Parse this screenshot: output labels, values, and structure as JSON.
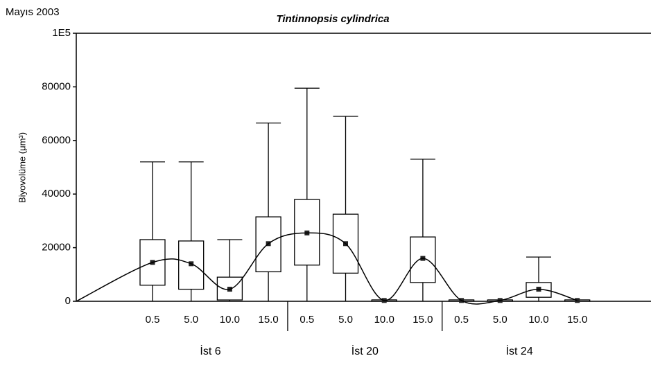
{
  "chart_data": {
    "type": "box",
    "title": "Tintinnopsis cylindrica",
    "subtitle": "Mayıs 2003",
    "y_label": "Biyovolüme (μm³)",
    "categories": [
      "0.5",
      "5.0",
      "10.0",
      "15.0",
      "0.5",
      "5.0",
      "10.0",
      "15.0",
      "0.5",
      "5.0",
      "10.0",
      "15.0"
    ],
    "groups": [
      "İst 6",
      "İst 20",
      "İst 24"
    ],
    "boxes": [
      {
        "whisker_low": 0,
        "q1": 6000,
        "mean": 14500,
        "q3": 23000,
        "whisker_high": 52000
      },
      {
        "whisker_low": 0,
        "q1": 4500,
        "mean": 14000,
        "q3": 22500,
        "whisker_high": 52000
      },
      {
        "whisker_low": 0,
        "q1": 500,
        "mean": 4500,
        "q3": 9000,
        "whisker_high": 23000
      },
      {
        "whisker_low": 0,
        "q1": 11000,
        "mean": 21500,
        "q3": 31500,
        "whisker_high": 66500
      },
      {
        "whisker_low": 0,
        "q1": 13500,
        "mean": 25500,
        "q3": 38000,
        "whisker_high": 79500
      },
      {
        "whisker_low": 0,
        "q1": 10500,
        "mean": 21500,
        "q3": 32500,
        "whisker_high": 69000
      },
      {
        "whisker_low": 0,
        "q1": 0,
        "mean": 300,
        "q3": 500,
        "whisker_high": 500
      },
      {
        "whisker_low": 0,
        "q1": 7000,
        "mean": 16000,
        "q3": 24000,
        "whisker_high": 53000
      },
      {
        "whisker_low": 0,
        "q1": 0,
        "mean": 300,
        "q3": 500,
        "whisker_high": 500
      },
      {
        "whisker_low": 0,
        "q1": 0,
        "mean": 300,
        "q3": 500,
        "whisker_high": 500
      },
      {
        "whisker_low": 0,
        "q1": 1500,
        "mean": 4500,
        "q3": 7000,
        "whisker_high": 16500
      },
      {
        "whisker_low": 0,
        "q1": 0,
        "mean": 300,
        "q3": 500,
        "whisker_high": 500
      }
    ],
    "ylim": [
      0,
      100000
    ],
    "yticks": [
      0,
      20000,
      40000,
      60000,
      80000,
      {
        "value": 100000,
        "label": "1E5"
      }
    ],
    "color": "#000000"
  }
}
